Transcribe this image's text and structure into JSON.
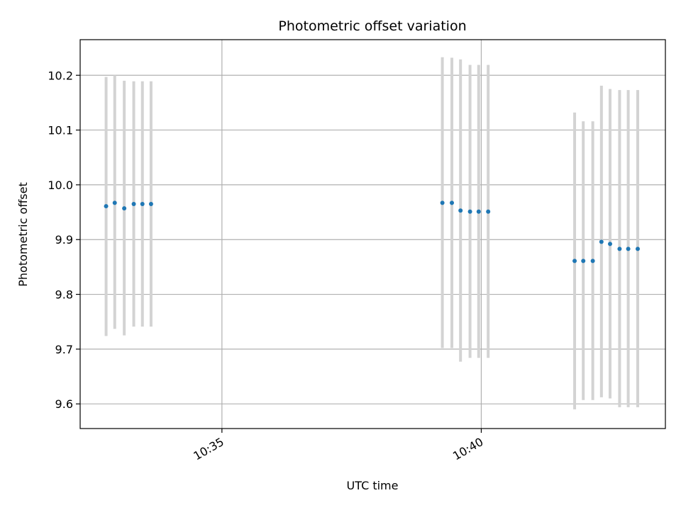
{
  "chart_data": {
    "type": "scatter",
    "title": "Photometric offset variation",
    "xlabel": "UTC time",
    "ylabel": "Photometric offset",
    "x_axis": {
      "type": "time",
      "range": [
        "10:32:16",
        "10:43:33"
      ],
      "ticks": [
        "10:35",
        "10:40"
      ]
    },
    "y_axis": {
      "range": [
        9.555,
        10.265
      ],
      "ticks": [
        "9.6",
        "9.7",
        "9.8",
        "9.9",
        "10.0",
        "10.1",
        "10.2"
      ]
    },
    "grid": true,
    "colors": {
      "point": "#1f77b4",
      "errorbar": "#d3d3d3",
      "grid": "#b0b0b0"
    },
    "series": [
      {
        "points": [
          {
            "x": "10:32:46",
            "y": 9.961,
            "lo": 9.724,
            "hi": 10.197
          },
          {
            "x": "10:32:56",
            "y": 9.967,
            "lo": 9.737,
            "hi": 10.2
          },
          {
            "x": "10:33:07",
            "y": 9.957,
            "lo": 9.725,
            "hi": 10.19
          },
          {
            "x": "10:33:18",
            "y": 9.965,
            "lo": 9.741,
            "hi": 10.189
          },
          {
            "x": "10:33:28",
            "y": 9.965,
            "lo": 9.741,
            "hi": 10.189
          },
          {
            "x": "10:33:38",
            "y": 9.965,
            "lo": 9.741,
            "hi": 10.189
          },
          {
            "x": "10:39:15",
            "y": 9.967,
            "lo": 9.702,
            "hi": 10.233
          },
          {
            "x": "10:39:26",
            "y": 9.967,
            "lo": 9.702,
            "hi": 10.232
          },
          {
            "x": "10:39:36",
            "y": 9.953,
            "lo": 9.677,
            "hi": 10.229
          },
          {
            "x": "10:39:47",
            "y": 9.951,
            "lo": 9.684,
            "hi": 10.219
          },
          {
            "x": "10:39:57",
            "y": 9.951,
            "lo": 9.684,
            "hi": 10.219
          },
          {
            "x": "10:40:08",
            "y": 9.951,
            "lo": 9.684,
            "hi": 10.219
          },
          {
            "x": "10:41:48",
            "y": 9.861,
            "lo": 9.59,
            "hi": 10.132
          },
          {
            "x": "10:41:58",
            "y": 9.861,
            "lo": 9.607,
            "hi": 10.116
          },
          {
            "x": "10:42:09",
            "y": 9.861,
            "lo": 9.607,
            "hi": 10.116
          },
          {
            "x": "10:42:19",
            "y": 9.896,
            "lo": 9.612,
            "hi": 10.181
          },
          {
            "x": "10:42:29",
            "y": 9.892,
            "lo": 9.61,
            "hi": 10.175
          },
          {
            "x": "10:42:40",
            "y": 9.883,
            "lo": 9.594,
            "hi": 10.173
          },
          {
            "x": "10:42:50",
            "y": 9.883,
            "lo": 9.594,
            "hi": 10.173
          },
          {
            "x": "10:43:01",
            "y": 9.883,
            "lo": 9.594,
            "hi": 10.173
          }
        ]
      }
    ]
  }
}
